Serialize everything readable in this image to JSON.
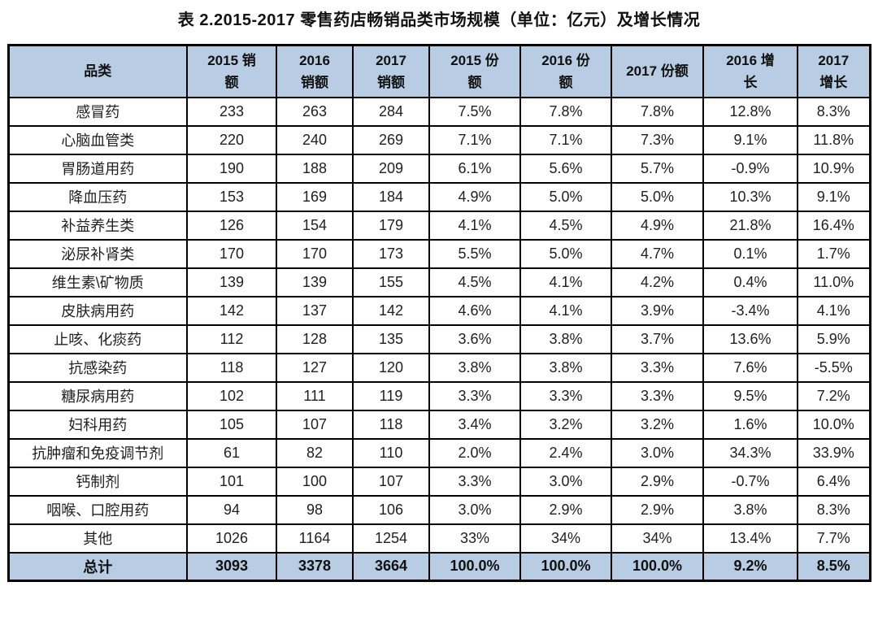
{
  "title": "表 2.2015-2017 零售药店畅销品类市场规模（单位：亿元）及增长情况",
  "display": {
    "header_labels": [
      "品类",
      "2015 销\n额",
      "2016\n销额",
      "2017\n销额",
      "2015 份\n额",
      "2016 份\n额",
      "2017 份额",
      "2016 增\n长",
      "2017\n增长"
    ]
  },
  "chart_data": {
    "type": "table",
    "title": "表 2.2015-2017 零售药店畅销品类市场规模（单位：亿元）及增长情况",
    "unit": "亿元",
    "columns": [
      "品类",
      "2015 销额",
      "2016 销额",
      "2017 销额",
      "2015 份额",
      "2016 份额",
      "2017 份额",
      "2016 增长",
      "2017 增长"
    ],
    "rows": [
      [
        "感冒药",
        "233",
        "263",
        "284",
        "7.5%",
        "7.8%",
        "7.8%",
        "12.8%",
        "8.3%"
      ],
      [
        "心脑血管类",
        "220",
        "240",
        "269",
        "7.1%",
        "7.1%",
        "7.3%",
        "9.1%",
        "11.8%"
      ],
      [
        "胃肠道用药",
        "190",
        "188",
        "209",
        "6.1%",
        "5.6%",
        "5.7%",
        "-0.9%",
        "10.9%"
      ],
      [
        "降血压药",
        "153",
        "169",
        "184",
        "4.9%",
        "5.0%",
        "5.0%",
        "10.3%",
        "9.1%"
      ],
      [
        "补益养生类",
        "126",
        "154",
        "179",
        "4.1%",
        "4.5%",
        "4.9%",
        "21.8%",
        "16.4%"
      ],
      [
        "泌尿补肾类",
        "170",
        "170",
        "173",
        "5.5%",
        "5.0%",
        "4.7%",
        "0.1%",
        "1.7%"
      ],
      [
        "维生素\\矿物质",
        "139",
        "139",
        "155",
        "4.5%",
        "4.1%",
        "4.2%",
        "0.4%",
        "11.0%"
      ],
      [
        "皮肤病用药",
        "142",
        "137",
        "142",
        "4.6%",
        "4.1%",
        "3.9%",
        "-3.4%",
        "4.1%"
      ],
      [
        "止咳、化痰药",
        "112",
        "128",
        "135",
        "3.6%",
        "3.8%",
        "3.7%",
        "13.6%",
        "5.9%"
      ],
      [
        "抗感染药",
        "118",
        "127",
        "120",
        "3.8%",
        "3.8%",
        "3.3%",
        "7.6%",
        "-5.5%"
      ],
      [
        "糖尿病用药",
        "102",
        "111",
        "119",
        "3.3%",
        "3.3%",
        "3.3%",
        "9.5%",
        "7.2%"
      ],
      [
        "妇科用药",
        "105",
        "107",
        "118",
        "3.4%",
        "3.2%",
        "3.2%",
        "1.6%",
        "10.0%"
      ],
      [
        "抗肿瘤和免疫调节剂",
        "61",
        "82",
        "110",
        "2.0%",
        "2.4%",
        "3.0%",
        "34.3%",
        "33.9%"
      ],
      [
        "钙制剂",
        "101",
        "100",
        "107",
        "3.3%",
        "3.0%",
        "2.9%",
        "-0.7%",
        "6.4%"
      ],
      [
        "咽喉、口腔用药",
        "94",
        "98",
        "106",
        "3.0%",
        "2.9%",
        "2.9%",
        "3.8%",
        "8.3%"
      ],
      [
        "其他",
        "1026",
        "1164",
        "1254",
        "33%",
        "34%",
        "34%",
        "13.4%",
        "7.7%"
      ]
    ],
    "total_row": [
      "总计",
      "3093",
      "3378",
      "3664",
      "100.0%",
      "100.0%",
      "100.0%",
      "9.2%",
      "8.5%"
    ]
  },
  "colors": {
    "header_bg": "#B8CCE4",
    "total_bg": "#B8CCE4",
    "border": "#000000",
    "text": "#1A1A1A"
  }
}
